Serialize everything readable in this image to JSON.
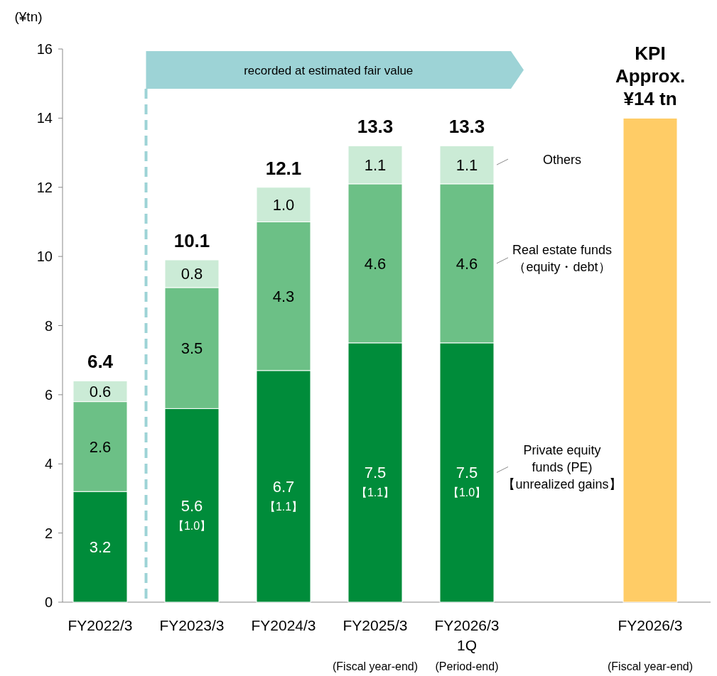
{
  "chart_data": {
    "type": "bar",
    "stacked": true,
    "categories": [
      "FY2022/3",
      "FY2023/3",
      "FY2024/3",
      "FY2025/3\n\n(Fiscal year-end)",
      "FY2026/3\n1Q\n(Period-end)",
      null,
      "FY2026/3\n\n(Fiscal year-end)"
    ],
    "ylabel": "(¥tn)",
    "ylim": [
      0,
      16
    ],
    "yticks": [
      0,
      2,
      4,
      6,
      8,
      10,
      12,
      14,
      16
    ],
    "series": [
      {
        "name": "Private equity\nfunds (PE)\n【unrealized gains】",
        "color": "#008c3a",
        "values": [
          3.2,
          5.6,
          6.7,
          7.5,
          7.5,
          null,
          null
        ],
        "value_labels": [
          "3.2",
          "5.6\n【1.0】",
          "6.7\n【1.1】",
          "7.5\n【1.1】",
          "7.5\n【1.0】",
          null,
          null
        ]
      },
      {
        "name": "Real estate funds\n（equity・debt）",
        "color": "#6cc086",
        "values": [
          2.6,
          3.5,
          4.3,
          4.6,
          4.6,
          null,
          null
        ],
        "value_labels": [
          "2.6",
          "3.5",
          "4.3",
          "4.6",
          "4.6",
          null,
          null
        ]
      },
      {
        "name": "Others",
        "color": "#cbebd6",
        "values": [
          0.6,
          0.8,
          1.0,
          1.1,
          1.1,
          null,
          null
        ],
        "value_labels": [
          "0.6",
          "0.8",
          "1.0",
          "1.1",
          "1.1",
          null,
          null
        ]
      },
      {
        "color": "#ffcc66",
        "values": [
          null,
          null,
          null,
          null,
          null,
          null,
          14
        ]
      }
    ],
    "totals": [
      "6.4",
      "10.1",
      "12.1",
      "13.3",
      "13.3",
      null,
      "KPI\nApprox.\n¥14 tn"
    ],
    "annotations": [
      "recorded at estimated fair value"
    ]
  }
}
